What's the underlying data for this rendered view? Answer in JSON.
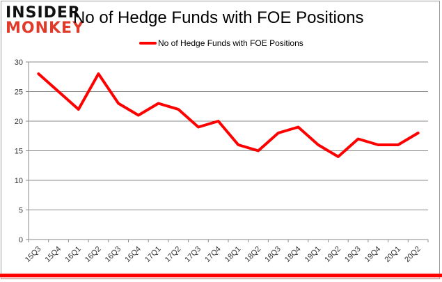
{
  "logo": {
    "line1": "INSIDER",
    "line2": "MONKEY"
  },
  "chart_data": {
    "type": "line",
    "title": "No of Hedge Funds with FOE Positions",
    "categories": [
      "15Q3",
      "15Q4",
      "16Q1",
      "16Q2",
      "16Q3",
      "16Q4",
      "17Q1",
      "17Q2",
      "17Q3",
      "17Q4",
      "18Q1",
      "18Q2",
      "18Q3",
      "18Q4",
      "19Q1",
      "19Q2",
      "19Q3",
      "19Q4",
      "20Q1",
      "20Q2"
    ],
    "series": [
      {
        "name": "No of Hedge Funds with FOE Positions",
        "values": [
          28,
          25,
          22,
          28,
          23,
          21,
          23,
          22,
          19,
          20,
          16,
          15,
          18,
          19,
          16,
          14,
          17,
          16,
          16,
          18
        ],
        "color": "#ff0000"
      }
    ],
    "ylim": [
      0,
      30
    ],
    "yticks": [
      0,
      5,
      10,
      15,
      20,
      25,
      30
    ],
    "grid": true,
    "legend": "top-center"
  }
}
